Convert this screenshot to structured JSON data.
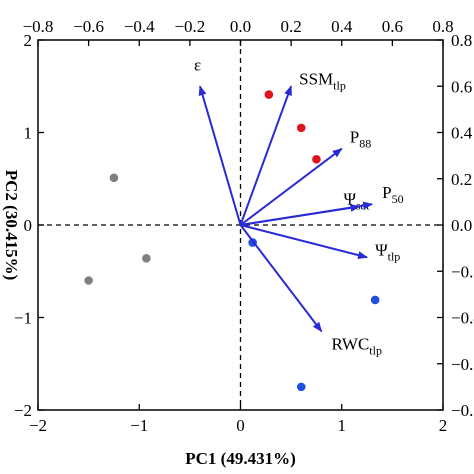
{
  "chart_data": {
    "type": "scatter",
    "subtype": "pca-biplot",
    "xlabel": "PC1 (49.431%)",
    "ylabel": "PC2 (30.415%)",
    "xlim": [
      -2,
      2
    ],
    "ylim": [
      -2,
      2
    ],
    "x_ticks": [
      "−2",
      "−1",
      "0",
      "1",
      "2"
    ],
    "y_ticks": [
      "−2",
      "−1",
      "0",
      "1",
      "2"
    ],
    "top_lim": [
      -0.8,
      0.8
    ],
    "top_ticks": [
      "−0.8",
      "−0.6",
      "−0.4",
      "−0.2",
      "0.0",
      "0.2",
      "0.4",
      "0.6",
      "0.8"
    ],
    "right_lim": [
      -0.8,
      0.8
    ],
    "right_ticks": [
      "−0.8",
      "−0.6",
      "−0.4",
      "−0.2",
      "0.0",
      "0.2",
      "0.4",
      "0.6",
      "0.8"
    ],
    "reference_lines": {
      "x": 0,
      "y": 0,
      "style": "dashed"
    },
    "colors": {
      "gray": "#808080",
      "red": "#e0141e",
      "blue": "#1f4fe0",
      "arrow": "#2a2ad6"
    },
    "series": [
      {
        "color": "gray",
        "points": [
          [
            -1.25,
            0.51
          ],
          [
            -0.93,
            -0.36
          ],
          [
            -1.5,
            -0.6
          ]
        ]
      },
      {
        "color": "red",
        "points": [
          [
            0.28,
            1.41
          ],
          [
            0.6,
            1.05
          ],
          [
            0.75,
            0.71
          ]
        ]
      },
      {
        "color": "blue",
        "points": [
          [
            0.12,
            -0.19
          ],
          [
            1.33,
            -0.81
          ],
          [
            0.6,
            -1.75
          ]
        ]
      }
    ],
    "vectors": [
      {
        "main": "ε",
        "sub": "",
        "x": -0.16,
        "y": 0.6
      },
      {
        "main": "SSM",
        "sub": "tlp",
        "x": 0.2,
        "y": 0.6
      },
      {
        "main": "P",
        "sub": "88",
        "x": 0.4,
        "y": 0.33
      },
      {
        "main": "Ψ",
        "sub": "sat",
        "x": 0.47,
        "y": 0.08
      },
      {
        "main": "P",
        "sub": "50",
        "x": 0.52,
        "y": 0.09
      },
      {
        "main": "Ψ",
        "sub": "tlp",
        "x": 0.5,
        "y": -0.14
      },
      {
        "main": "RWC",
        "sub": "tlp",
        "x": 0.32,
        "y": -0.46
      }
    ]
  }
}
